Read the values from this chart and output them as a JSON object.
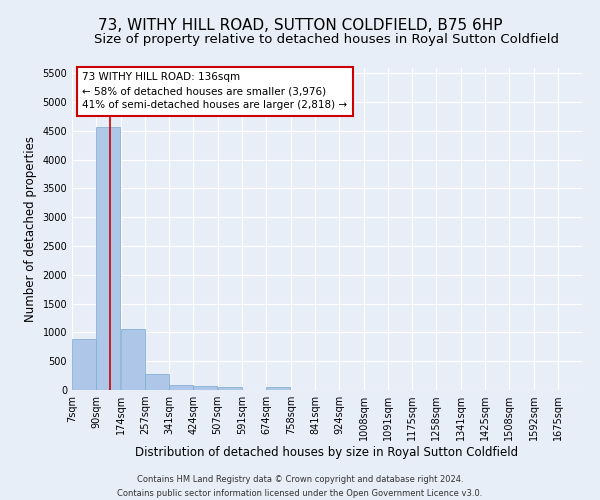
{
  "title": "73, WITHY HILL ROAD, SUTTON COLDFIELD, B75 6HP",
  "subtitle": "Size of property relative to detached houses in Royal Sutton Coldfield",
  "xlabel": "Distribution of detached houses by size in Royal Sutton Coldfield",
  "ylabel": "Number of detached properties",
  "footer_line1": "Contains HM Land Registry data © Crown copyright and database right 2024.",
  "footer_line2": "Contains public sector information licensed under the Open Government Licence v3.0.",
  "annotation_line1": "73 WITHY HILL ROAD: 136sqm",
  "annotation_line2": "← 58% of detached houses are smaller (3,976)",
  "annotation_line3": "41% of semi-detached houses are larger (2,818) →",
  "bar_color": "#aec6e8",
  "bar_edge_color": "#7aabcf",
  "ref_line_color": "#cc0000",
  "ref_line_x": 136,
  "categories": [
    7,
    90,
    174,
    257,
    341,
    424,
    507,
    591,
    674,
    758,
    841,
    924,
    1008,
    1091,
    1175,
    1258,
    1341,
    1425,
    1508,
    1592,
    1675
  ],
  "bin_width": 83,
  "bar_heights": [
    880,
    4560,
    1060,
    270,
    90,
    75,
    55,
    0,
    55,
    0,
    0,
    0,
    0,
    0,
    0,
    0,
    0,
    0,
    0,
    0,
    0
  ],
  "ylim": [
    0,
    5600
  ],
  "yticks": [
    0,
    500,
    1000,
    1500,
    2000,
    2500,
    3000,
    3500,
    4000,
    4500,
    5000,
    5500
  ],
  "background_color": "#e8eef7",
  "plot_bg_color": "#e8eef7",
  "grid_color": "#ffffff",
  "title_fontsize": 11,
  "subtitle_fontsize": 9.5,
  "tick_label_fontsize": 7,
  "axis_label_fontsize": 8.5,
  "annotation_fontsize": 7.5,
  "footer_fontsize": 6
}
